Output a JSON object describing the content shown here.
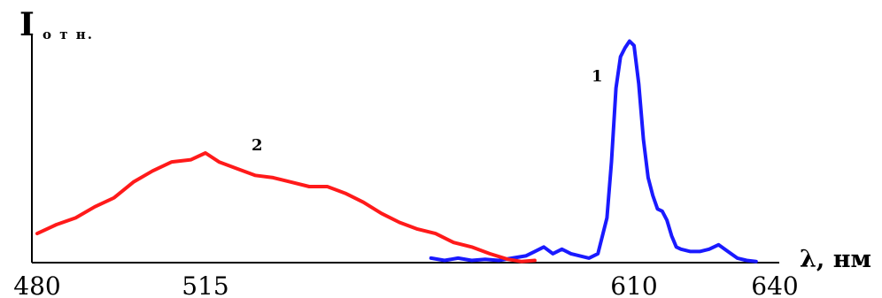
{
  "chart_data": {
    "type": "line",
    "ylabel_main": "I",
    "ylabel_sub": "о т н.",
    "xlabel": "λ, нм",
    "xticks": [
      "480",
      "515",
      "610",
      "640"
    ],
    "xlim": [
      480,
      640
    ],
    "ylim": [
      0,
      1
    ],
    "grid": false,
    "series": [
      {
        "name": "1",
        "color": "#1a1aff",
        "x": [
          565,
          568,
          571,
          574,
          577,
          580,
          583,
          586,
          588,
          590,
          592,
          594,
          596,
          598,
          600,
          602,
          604,
          605,
          606,
          607,
          608,
          609,
          610,
          611,
          612,
          613,
          614,
          615,
          616,
          617,
          618,
          619,
          620,
          622,
          624,
          626,
          628,
          630,
          632,
          634,
          636
        ],
        "y": [
          0.02,
          0.01,
          0.02,
          0.01,
          0.015,
          0.01,
          0.02,
          0.03,
          0.05,
          0.07,
          0.04,
          0.06,
          0.04,
          0.03,
          0.02,
          0.04,
          0.2,
          0.45,
          0.78,
          0.92,
          0.96,
          0.99,
          0.97,
          0.8,
          0.55,
          0.38,
          0.3,
          0.24,
          0.23,
          0.19,
          0.12,
          0.07,
          0.06,
          0.05,
          0.05,
          0.06,
          0.08,
          0.05,
          0.02,
          0.01,
          0.005
        ]
      },
      {
        "name": "2",
        "color": "#ff1a1a",
        "x": [
          480,
          484,
          488,
          492,
          496,
          500,
          504,
          508,
          512,
          515,
          518,
          522,
          526,
          530,
          534,
          538,
          542,
          546,
          550,
          554,
          558,
          562,
          566,
          570,
          574,
          578,
          582,
          585,
          588
        ],
        "y": [
          0.13,
          0.17,
          0.2,
          0.25,
          0.29,
          0.36,
          0.41,
          0.45,
          0.46,
          0.49,
          0.45,
          0.42,
          0.39,
          0.38,
          0.36,
          0.34,
          0.34,
          0.31,
          0.27,
          0.22,
          0.18,
          0.15,
          0.13,
          0.09,
          0.07,
          0.04,
          0.015,
          0.005,
          0.01
        ]
      }
    ]
  }
}
